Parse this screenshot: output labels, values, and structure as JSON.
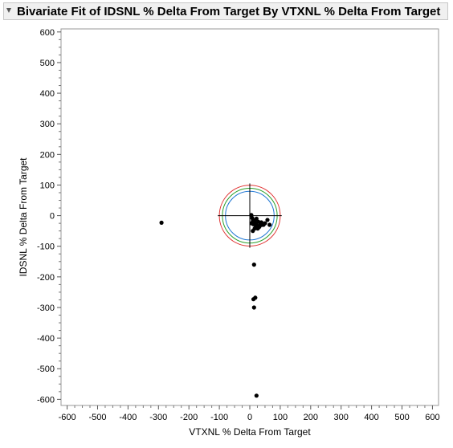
{
  "title": "Bivariate Fit of IDSNL % Delta From Target By VTXNL % Delta From Target",
  "chart_data": {
    "type": "scatter",
    "title": "Bivariate Fit of IDSNL % Delta From Target By VTXNL % Delta From Target",
    "xlabel": "VTXNL % Delta From Target",
    "ylabel": "IDSNL % Delta From Target",
    "xlim": [
      -620,
      620
    ],
    "ylim": [
      -620,
      610
    ],
    "xticks": [
      -600,
      -500,
      -400,
      -300,
      -200,
      -100,
      0,
      100,
      200,
      300,
      400,
      500,
      600
    ],
    "yticks": [
      -600,
      -500,
      -400,
      -300,
      -200,
      -100,
      0,
      100,
      200,
      300,
      400,
      500,
      600
    ],
    "grid": false,
    "points": [
      {
        "x": -290,
        "y": -23
      },
      {
        "x": 14,
        "y": -160
      },
      {
        "x": 18,
        "y": -268
      },
      {
        "x": 12,
        "y": -273
      },
      {
        "x": 14,
        "y": -300
      },
      {
        "x": 22,
        "y": -588
      },
      {
        "x": 10,
        "y": -50
      },
      {
        "x": 16,
        "y": -42
      },
      {
        "x": 58,
        "y": -14
      },
      {
        "x": 65,
        "y": -30
      },
      {
        "x": 50,
        "y": -25
      },
      {
        "x": 40,
        "y": -30
      },
      {
        "x": 30,
        "y": -38
      },
      {
        "x": 25,
        "y": -33
      },
      {
        "x": 20,
        "y": -28
      },
      {
        "x": 15,
        "y": -22
      },
      {
        "x": 10,
        "y": -18
      },
      {
        "x": 8,
        "y": -8
      },
      {
        "x": 5,
        "y": 2
      },
      {
        "x": 28,
        "y": -20
      },
      {
        "x": 35,
        "y": -25
      },
      {
        "x": 32,
        "y": -35
      },
      {
        "x": 18,
        "y": -15
      },
      {
        "x": 22,
        "y": -10
      },
      {
        "x": 12,
        "y": -28
      },
      {
        "x": 38,
        "y": -22
      },
      {
        "x": 45,
        "y": -30
      },
      {
        "x": 26,
        "y": -42
      },
      {
        "x": 6,
        "y": -25
      },
      {
        "x": 20,
        "y": -37
      }
    ],
    "reference_crosshair": {
      "x": 0,
      "y": 0,
      "half_length": 105
    },
    "circles": [
      {
        "radius": 100,
        "color": "#e03030"
      },
      {
        "radius": 90,
        "color": "#2ca02c"
      },
      {
        "radius": 80,
        "color": "#1f77d4"
      }
    ]
  }
}
